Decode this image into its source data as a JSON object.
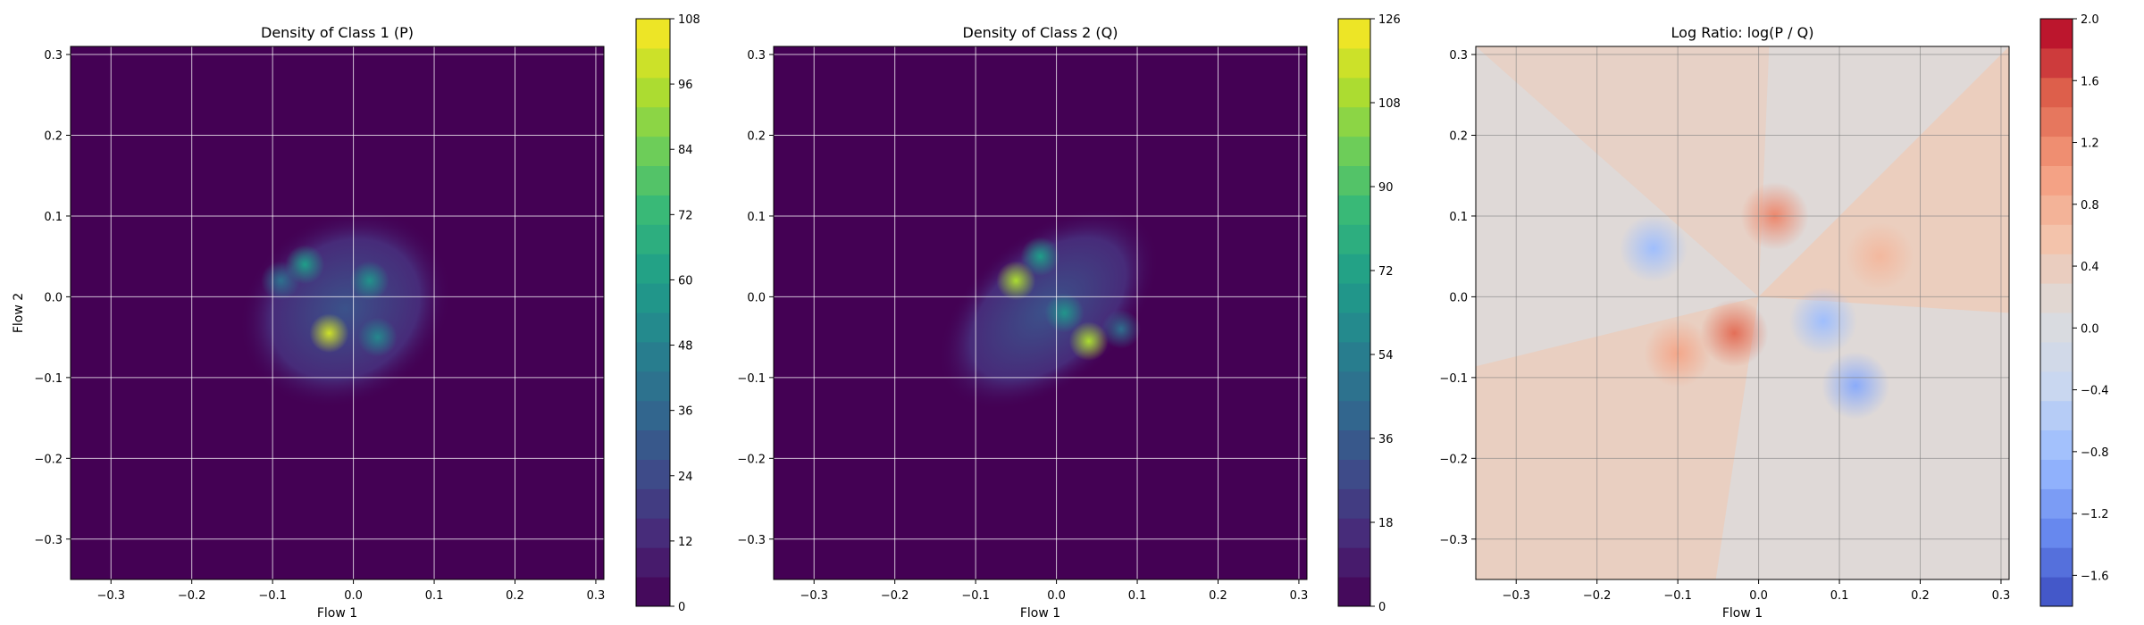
{
  "chart_data": [
    {
      "type": "heatmap",
      "title": "Density of Class 1 (P)",
      "xlabel": "Flow 1",
      "ylabel": "Flow 2",
      "xlim": [
        -0.35,
        0.31
      ],
      "ylim": [
        -0.35,
        0.31
      ],
      "x_ticks": [
        "−0.3",
        "−0.2",
        "−0.1",
        "0.0",
        "0.1",
        "0.2",
        "0.3"
      ],
      "y_ticks": [
        "−0.3",
        "−0.2",
        "−0.1",
        "0.0",
        "0.1",
        "0.2",
        "0.3"
      ],
      "grid": true,
      "colormap": "viridis",
      "colorbar": {
        "min": 0,
        "max": 108,
        "ticks": [
          "0",
          "12",
          "24",
          "36",
          "48",
          "60",
          "72",
          "84",
          "96",
          "108"
        ]
      },
      "hotspots": [
        {
          "x": -0.03,
          "y": -0.045,
          "value": 100
        },
        {
          "x": -0.06,
          "y": 0.04,
          "value": 60
        },
        {
          "x": 0.02,
          "y": 0.02,
          "value": 55
        },
        {
          "x": 0.03,
          "y": -0.05,
          "value": 50
        },
        {
          "x": -0.09,
          "y": 0.02,
          "value": 40
        }
      ]
    },
    {
      "type": "heatmap",
      "title": "Density of Class 2 (Q)",
      "xlabel": "Flow 1",
      "ylabel": "",
      "xlim": [
        -0.35,
        0.31
      ],
      "ylim": [
        -0.35,
        0.31
      ],
      "x_ticks": [
        "−0.3",
        "−0.2",
        "−0.1",
        "0.0",
        "0.1",
        "0.2",
        "0.3"
      ],
      "y_ticks": [
        "−0.3",
        "−0.2",
        "−0.1",
        "0.0",
        "0.1",
        "0.2",
        "0.3"
      ],
      "grid": true,
      "colormap": "viridis",
      "colorbar": {
        "min": 0,
        "max": 126,
        "ticks": [
          "0",
          "18",
          "36",
          "54",
          "72",
          "90",
          "108",
          "126"
        ]
      },
      "hotspots": [
        {
          "x": -0.05,
          "y": 0.02,
          "value": 110
        },
        {
          "x": 0.04,
          "y": -0.055,
          "value": 110
        },
        {
          "x": -0.02,
          "y": 0.05,
          "value": 70
        },
        {
          "x": 0.01,
          "y": -0.02,
          "value": 65
        },
        {
          "x": 0.08,
          "y": -0.04,
          "value": 45
        }
      ]
    },
    {
      "type": "heatmap",
      "title": "Log Ratio: log(P / Q)",
      "xlabel": "Flow 1",
      "ylabel": "",
      "xlim": [
        -0.35,
        0.31
      ],
      "ylim": [
        -0.35,
        0.31
      ],
      "x_ticks": [
        "−0.3",
        "−0.2",
        "−0.1",
        "0.0",
        "0.1",
        "0.2",
        "0.3"
      ],
      "y_ticks": [
        "−0.3",
        "−0.2",
        "−0.1",
        "0.0",
        "0.1",
        "0.2",
        "0.3"
      ],
      "grid": true,
      "colormap": "coolwarm",
      "colorbar": {
        "min": -1.8,
        "max": 2.0,
        "ticks": [
          "−1.6",
          "−1.2",
          "−0.8",
          "−0.4",
          "0.0",
          "0.4",
          "0.8",
          "1.2",
          "1.6",
          "2.0"
        ]
      },
      "hotspots": [
        {
          "x": -0.13,
          "y": 0.06,
          "value": -0.8
        },
        {
          "x": 0.12,
          "y": -0.11,
          "value": -1.0
        },
        {
          "x": 0.08,
          "y": -0.03,
          "value": -0.8
        },
        {
          "x": -0.03,
          "y": -0.045,
          "value": 1.4
        },
        {
          "x": 0.02,
          "y": 0.1,
          "value": 1.2
        },
        {
          "x": -0.1,
          "y": -0.07,
          "value": 0.9
        },
        {
          "x": 0.15,
          "y": 0.05,
          "value": 0.7
        }
      ]
    }
  ]
}
